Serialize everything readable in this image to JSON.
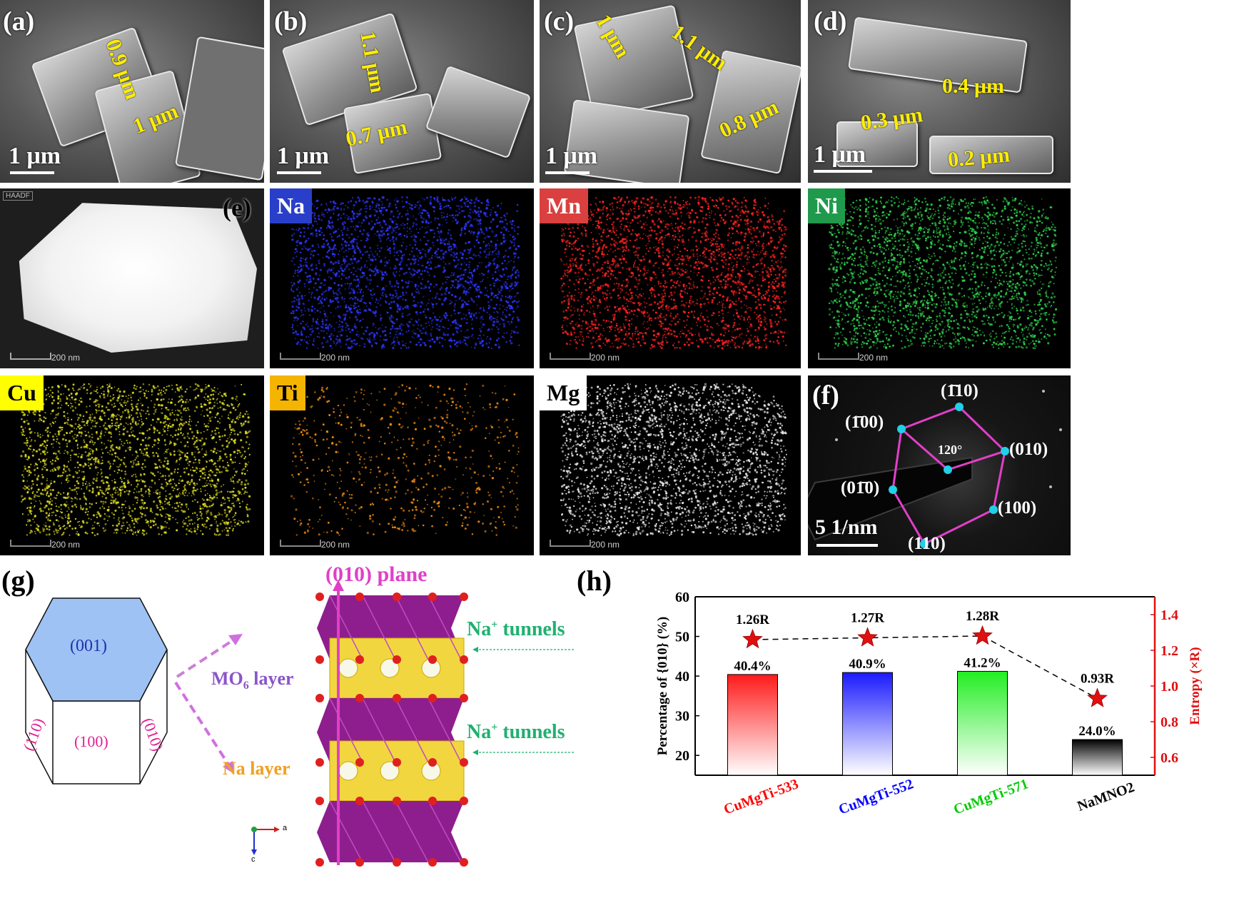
{
  "panels": {
    "a": {
      "label": "(a)",
      "scale": "1 μm",
      "measures": [
        "0.9 μm",
        "1 μm"
      ]
    },
    "b": {
      "label": "(b)",
      "scale": "1 μm",
      "measures": [
        "1.1 μm",
        "0.7 μm"
      ]
    },
    "c": {
      "label": "(c)",
      "scale": "1 μm",
      "measures": [
        "1 μm",
        "1.1 μm",
        "0.8 μm"
      ]
    },
    "d": {
      "label": "(d)",
      "scale": "1 μm",
      "measures": [
        "0.4 μm",
        "0.3 μm",
        "0.2 μm"
      ]
    },
    "e": {
      "label": "(e)",
      "haadf_tag": "HAADF",
      "scale": "200 nm"
    },
    "f": {
      "label": "(f)",
      "scale": "5 1/nm",
      "angle": "120°",
      "spots": [
        "(1̄10)",
        "(1̄00)",
        "(010)",
        "(01̄0)",
        "(100)",
        "(110)"
      ]
    },
    "g": {
      "label": "(g)",
      "faces": [
        "(001)",
        "(100)",
        "(110)",
        "(010)"
      ],
      "mo6_layer": "MO",
      "mo6_sub": "6",
      "mo6_rest": " layer",
      "na_layer": "Na layer",
      "plane": "(010) plane",
      "tunnel1_a": "Na",
      "tunnel1_sup": "+",
      "tunnel1_b": " tunnels",
      "tunnel2_a": "Na",
      "tunnel2_sup": "+",
      "tunnel2_b": " tunnels",
      "axis_a": "a",
      "axis_c": "c"
    },
    "h": {
      "label": "(h)"
    }
  },
  "eds_maps": [
    {
      "element": "Na",
      "tag_bg": "#2a3fc9",
      "tag_fg": "#ffffff",
      "dot": "#2b35ff",
      "scale": "200 nm"
    },
    {
      "element": "Mn",
      "tag_bg": "#d9403f",
      "tag_fg": "#ffffff",
      "dot": "#ff2020",
      "scale": "200 nm"
    },
    {
      "element": "Ni",
      "tag_bg": "#1f9a4c",
      "tag_fg": "#ffffff",
      "dot": "#2ed14a",
      "scale": "200 nm"
    },
    {
      "element": "Cu",
      "tag_bg": "#ffff00",
      "tag_fg": "#000000",
      "dot": "#d8d820",
      "scale": "200 nm"
    },
    {
      "element": "Ti",
      "tag_bg": "#f5b400",
      "tag_fg": "#000000",
      "dot": "#f08a10",
      "scale": "200 nm"
    },
    {
      "element": "Mg",
      "tag_bg": "#ffffff",
      "tag_fg": "#000000",
      "dot": "#e8e8e8",
      "scale": "200 nm"
    }
  ],
  "chart_data": {
    "type": "bar",
    "categories": [
      "CuMgTi-533",
      "CuMgTi-552",
      "CuMgTi-571",
      "NaMNO2"
    ],
    "category_colors": [
      "#ff0000",
      "#0000ff",
      "#00cc00",
      "#000000"
    ],
    "values": [
      40.4,
      40.9,
      41.2,
      24.0
    ],
    "value_labels": [
      "40.4%",
      "40.9%",
      "41.2%",
      "24.0%"
    ],
    "bar_colors": [
      "#ff1a1a",
      "#1a1aff",
      "#22ee22",
      "#000000"
    ],
    "ylabel": "Percentage of {010} (%)",
    "ylim": [
      15,
      60
    ],
    "yticks": [
      20,
      30,
      40,
      50,
      60
    ],
    "y2label": "Entropy (×R)",
    "y2lim": [
      0.5,
      1.5
    ],
    "y2ticks": [
      0.6,
      0.8,
      1.0,
      1.2,
      1.4
    ],
    "entropy": [
      1.26,
      1.27,
      1.28,
      0.93
    ],
    "entropy_labels": [
      "1.26R",
      "1.27R",
      "1.28R",
      "0.93R"
    ],
    "entropy_color": "#e01010"
  }
}
